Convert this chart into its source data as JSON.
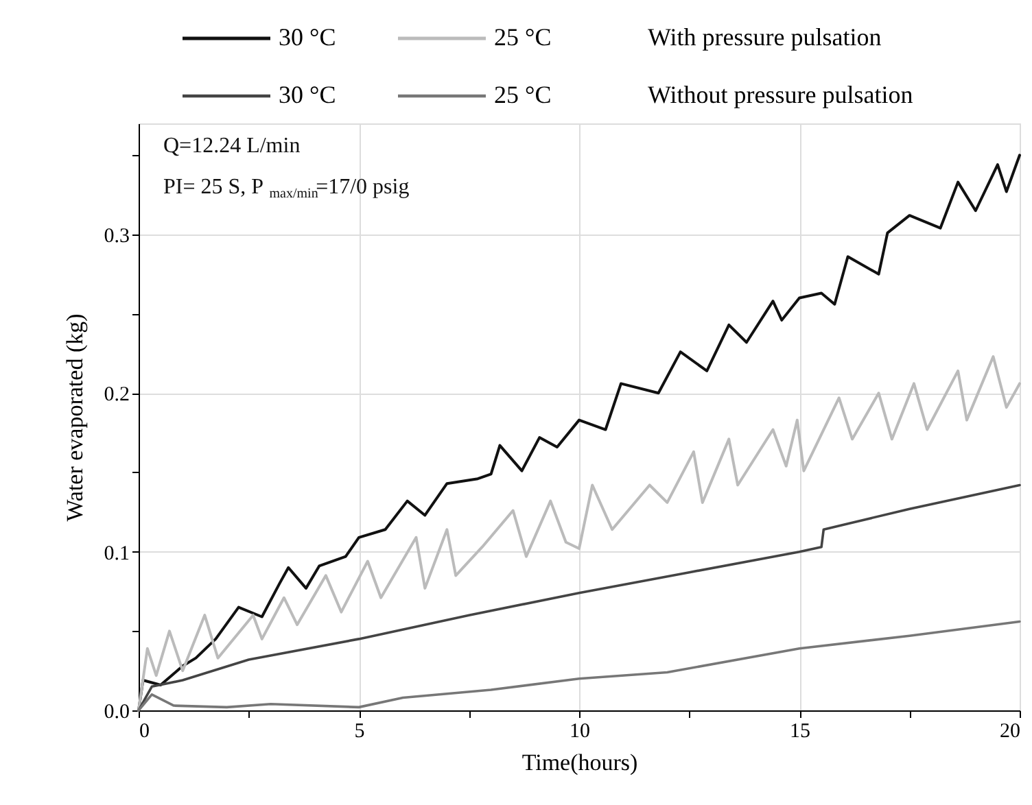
{
  "chart_data": {
    "type": "line",
    "xlabel": "Time(hours)",
    "ylabel": "Water evaporated (kg)",
    "xlim": [
      0,
      20
    ],
    "ylim": [
      0,
      0.37
    ],
    "xticks": [
      0,
      {
        "value": 2.5,
        "label": null
      },
      5,
      {
        "value": 7.5,
        "label": null
      },
      10,
      {
        "value": 12.5,
        "label": null
      },
      15,
      {
        "value": 17.5,
        "label": null
      },
      20
    ],
    "yticks": [
      {
        "value": 0,
        "label": "0.0"
      },
      {
        "value": 0.05,
        "label": null
      },
      0.1,
      {
        "value": 0.15,
        "label": null
      },
      0.2,
      {
        "value": 0.25,
        "label": null
      },
      0.3,
      {
        "value": 0.35,
        "label": null
      }
    ],
    "grid": true,
    "legend": "top",
    "line_style": "solid",
    "marker": "none",
    "annotations": [
      "Q=12.24 L/min",
      "PI= 25 S,   P$_{max/min}$=17/0 psig",
      "With pressure pulsation",
      "Without pressure pulsation"
    ],
    "series": [
      {
        "name": "30 °C",
        "color": "#111111",
        "x": [
          0,
          0.1,
          0.5,
          1.0,
          1.3,
          1.75,
          2.27,
          2.8,
          3.2,
          3.4,
          3.8,
          4.1,
          4.7,
          5.0,
          5.6,
          6.1,
          6.5,
          7.0,
          7.7,
          8.0,
          8.2,
          8.7,
          9.1,
          9.5,
          10.0,
          10.6,
          10.95,
          11.8,
          12.3,
          12.9,
          13.4,
          13.8,
          14.4,
          14.6,
          15.0,
          15.5,
          15.8,
          16.1,
          16.8,
          17.0,
          17.5,
          18.2,
          18.6,
          19.0,
          19.5,
          19.7,
          20.0
        ],
        "values": [
          0,
          0.019,
          0.016,
          0.028,
          0.033,
          0.045,
          0.065,
          0.059,
          0.08,
          0.09,
          0.077,
          0.091,
          0.097,
          0.109,
          0.114,
          0.132,
          0.123,
          0.143,
          0.146,
          0.149,
          0.167,
          0.151,
          0.172,
          0.166,
          0.183,
          0.177,
          0.206,
          0.2,
          0.226,
          0.214,
          0.243,
          0.232,
          0.258,
          0.246,
          0.26,
          0.263,
          0.256,
          0.286,
          0.275,
          0.301,
          0.312,
          0.304,
          0.333,
          0.315,
          0.344,
          0.327,
          0.35
        ]
      },
      {
        "name": "25 °C",
        "color": "#bbbbbb",
        "x": [
          0,
          0.2,
          0.4,
          0.7,
          1.0,
          1.5,
          1.8,
          2.6,
          2.8,
          3.3,
          3.6,
          4.25,
          4.6,
          5.2,
          5.5,
          6.3,
          6.5,
          7.0,
          7.2,
          7.8,
          8.5,
          8.8,
          9.35,
          9.7,
          10.0,
          10.3,
          10.75,
          11.6,
          12.0,
          12.6,
          12.8,
          13.4,
          13.6,
          14.4,
          14.7,
          14.95,
          15.1,
          15.9,
          16.2,
          16.8,
          17.1,
          17.6,
          17.9,
          18.6,
          18.8,
          19.4,
          19.7,
          20.0
        ],
        "values": [
          0,
          0.039,
          0.022,
          0.05,
          0.025,
          0.06,
          0.033,
          0.06,
          0.045,
          0.071,
          0.054,
          0.085,
          0.062,
          0.094,
          0.071,
          0.109,
          0.077,
          0.114,
          0.085,
          0.103,
          0.126,
          0.097,
          0.132,
          0.106,
          0.102,
          0.142,
          0.114,
          0.142,
          0.131,
          0.163,
          0.131,
          0.171,
          0.142,
          0.177,
          0.154,
          0.183,
          0.151,
          0.197,
          0.171,
          0.2,
          0.171,
          0.206,
          0.177,
          0.214,
          0.183,
          0.223,
          0.191,
          0.206
        ]
      },
      {
        "name": "30 °C",
        "color": "#444444",
        "x": [
          0,
          0.3,
          1.0,
          2.5,
          5.0,
          7.5,
          10.0,
          12.5,
          15.0,
          15.5,
          15.55,
          17.5,
          20.0
        ],
        "values": [
          0,
          0.015,
          0.019,
          0.032,
          0.045,
          0.06,
          0.074,
          0.087,
          0.1,
          0.103,
          0.114,
          0.127,
          0.142
        ]
      },
      {
        "name": "25 °C",
        "color": "#777777",
        "x": [
          0,
          0.3,
          0.8,
          2.0,
          3.0,
          5.0,
          6.0,
          8.0,
          10.0,
          12.0,
          15.0,
          17.5,
          20.0
        ],
        "values": [
          0,
          0.01,
          0.003,
          0.002,
          0.004,
          0.002,
          0.008,
          0.013,
          0.02,
          0.024,
          0.039,
          0.047,
          0.056
        ]
      }
    ]
  }
}
